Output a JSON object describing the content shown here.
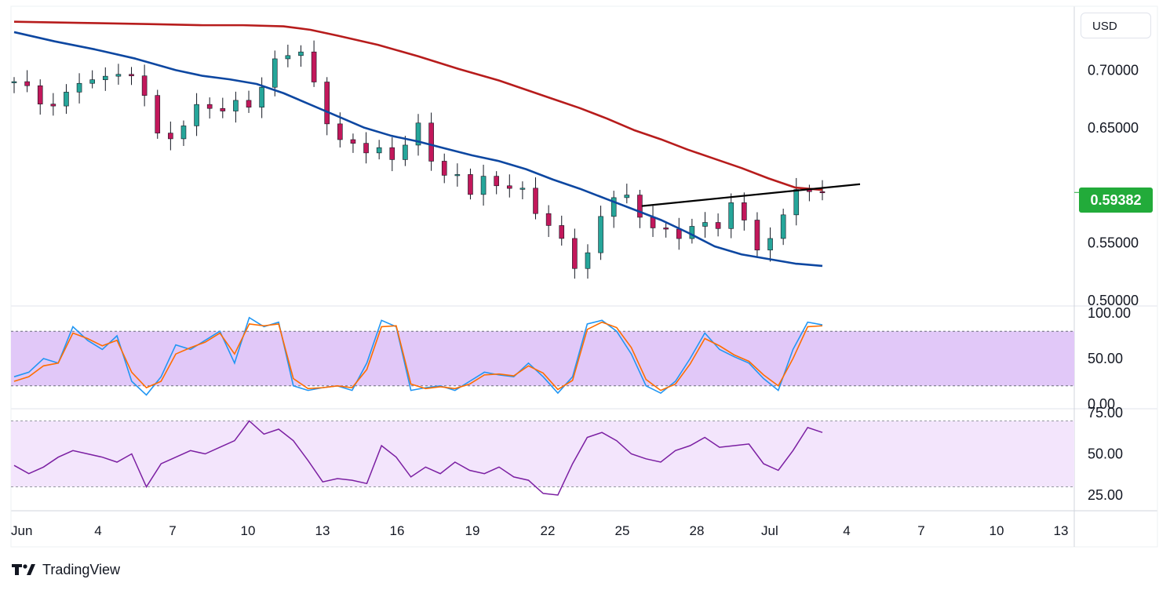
{
  "currency": "USD",
  "last_price": "0.59382",
  "branding": {
    "name": "TradingView",
    "logo_icon": "tradingview-logo-icon"
  },
  "colors": {
    "up": "#26a69a",
    "down": "#c2185b",
    "ema_slow": "#b71c1c",
    "ema_fast": "#0d47a1",
    "stoch_k": "#2196f3",
    "stoch_d": "#ff6d00",
    "rsi": "#7b1fa2",
    "stoch_band": "#e1c8f8",
    "rsi_band": "#f3e5fc",
    "price_tag": "#22ab3a"
  },
  "chart_data": [
    {
      "type": "candlestick",
      "panel": "price",
      "x_ticks": [
        "Jun",
        "4",
        "7",
        "10",
        "13",
        "16",
        "19",
        "22",
        "25",
        "28",
        "Jul",
        "4",
        "7",
        "10",
        "13"
      ],
      "y_ticks": [
        "0.70000",
        "0.65000",
        "0.55000",
        "0.50000"
      ],
      "ylim": [
        0.5,
        0.735
      ],
      "last_value": 0.59382,
      "close_path": [
        [
          0,
          0.69
        ],
        [
          2,
          0.675
        ],
        [
          3,
          0.665
        ],
        [
          4,
          0.682
        ],
        [
          5,
          0.695
        ],
        [
          6,
          0.685
        ],
        [
          7,
          0.7
        ],
        [
          8,
          0.698
        ],
        [
          9,
          0.687
        ],
        [
          10,
          0.68
        ],
        [
          11,
          0.625
        ],
        [
          12,
          0.645
        ],
        [
          13,
          0.665
        ],
        [
          14,
          0.668
        ],
        [
          15,
          0.665
        ],
        [
          16,
          0.672
        ],
        [
          17,
          0.665
        ],
        [
          18,
          0.678
        ],
        [
          19,
          0.7
        ],
        [
          20,
          0.715
        ],
        [
          21,
          0.722
        ],
        [
          22,
          0.695
        ],
        [
          23,
          0.665
        ],
        [
          24,
          0.635
        ],
        [
          25,
          0.638
        ],
        [
          26,
          0.632
        ],
        [
          27,
          0.628
        ],
        [
          28,
          0.625
        ],
        [
          29,
          0.635
        ],
        [
          30,
          0.65
        ],
        [
          31,
          0.625
        ],
        [
          32,
          0.605
        ],
        [
          33,
          0.608
        ],
        [
          34,
          0.595
        ],
        [
          35,
          0.605
        ],
        [
          36,
          0.6
        ],
        [
          37,
          0.6
        ],
        [
          38,
          0.59
        ],
        [
          39,
          0.575
        ],
        [
          40,
          0.56
        ],
        [
          41,
          0.545
        ],
        [
          42,
          0.525
        ],
        [
          43,
          0.548
        ],
        [
          44,
          0.592
        ],
        [
          45,
          0.595
        ],
        [
          46,
          0.578
        ],
        [
          47,
          0.57
        ],
        [
          48,
          0.558
        ],
        [
          49,
          0.556
        ],
        [
          50,
          0.562
        ],
        [
          51,
          0.566
        ],
        [
          52,
          0.562
        ],
        [
          53,
          0.583
        ],
        [
          54,
          0.575
        ],
        [
          55,
          0.548
        ],
        [
          56,
          0.545
        ],
        [
          57,
          0.575
        ],
        [
          58,
          0.598
        ],
        [
          59,
          0.59
        ],
        [
          60,
          0.594
        ]
      ],
      "trendline": {
        "x": [
          49.5,
          66.3
        ],
        "y": [
          0.582,
          0.601
        ]
      },
      "series": [
        {
          "name": "",
          "color": "#b71c1c",
          "points": [
            [
              0,
              0.742
            ],
            [
              5,
              0.741
            ],
            [
              10,
              0.74
            ],
            [
              14,
              0.739
            ],
            [
              17,
              0.739
            ],
            [
              20,
              0.738
            ],
            [
              22,
              0.735
            ],
            [
              24,
              0.73
            ],
            [
              27,
              0.722
            ],
            [
              30,
              0.712
            ],
            [
              33,
              0.701
            ],
            [
              36,
              0.691
            ],
            [
              38,
              0.683
            ],
            [
              40,
              0.675
            ],
            [
              42,
              0.667
            ],
            [
              44,
              0.658
            ],
            [
              46,
              0.648
            ],
            [
              48,
              0.64
            ],
            [
              50,
              0.631
            ],
            [
              52,
              0.623
            ],
            [
              54,
              0.615
            ],
            [
              56,
              0.606
            ],
            [
              58,
              0.598
            ],
            [
              60,
              0.596
            ]
          ]
        },
        {
          "name": "",
          "color": "#0d47a1",
          "points": [
            [
              0,
              0.733
            ],
            [
              3,
              0.725
            ],
            [
              6,
              0.718
            ],
            [
              9,
              0.71
            ],
            [
              12,
              0.7
            ],
            [
              14,
              0.695
            ],
            [
              16,
              0.692
            ],
            [
              18,
              0.688
            ],
            [
              20,
              0.68
            ],
            [
              22,
              0.67
            ],
            [
              24,
              0.66
            ],
            [
              26,
              0.65
            ],
            [
              28,
              0.643
            ],
            [
              30,
              0.638
            ],
            [
              32,
              0.632
            ],
            [
              34,
              0.626
            ],
            [
              36,
              0.621
            ],
            [
              38,
              0.614
            ],
            [
              40,
              0.605
            ],
            [
              42,
              0.597
            ],
            [
              44,
              0.588
            ],
            [
              46,
              0.579
            ],
            [
              48,
              0.57
            ],
            [
              50,
              0.559
            ],
            [
              52,
              0.547
            ],
            [
              54,
              0.54
            ],
            [
              56,
              0.536
            ],
            [
              58,
              0.532
            ],
            [
              60,
              0.53
            ]
          ]
        }
      ]
    },
    {
      "type": "line",
      "panel": "stochastic",
      "y_ticks": [
        "100.00",
        "50.00",
        "0.00"
      ],
      "ylim": [
        0,
        100
      ],
      "bands": [
        20,
        80
      ],
      "series": [
        {
          "name": "",
          "color": "#2196f3",
          "points": [
            [
              0,
              30
            ],
            [
              1,
              35
            ],
            [
              2,
              50
            ],
            [
              3,
              45
            ],
            [
              4,
              85
            ],
            [
              5,
              70
            ],
            [
              6,
              60
            ],
            [
              7,
              75
            ],
            [
              8,
              25
            ],
            [
              9,
              10
            ],
            [
              10,
              30
            ],
            [
              11,
              65
            ],
            [
              12,
              60
            ],
            [
              13,
              70
            ],
            [
              14,
              80
            ],
            [
              15,
              45
            ],
            [
              16,
              95
            ],
            [
              17,
              85
            ],
            [
              18,
              90
            ],
            [
              19,
              20
            ],
            [
              20,
              15
            ],
            [
              21,
              18
            ],
            [
              22,
              20
            ],
            [
              23,
              15
            ],
            [
              24,
              45
            ],
            [
              25,
              92
            ],
            [
              26,
              85
            ],
            [
              27,
              15
            ],
            [
              28,
              18
            ],
            [
              29,
              20
            ],
            [
              30,
              15
            ],
            [
              31,
              25
            ],
            [
              32,
              35
            ],
            [
              33,
              32
            ],
            [
              34,
              30
            ],
            [
              35,
              45
            ],
            [
              36,
              30
            ],
            [
              37,
              12
            ],
            [
              38,
              30
            ],
            [
              39,
              88
            ],
            [
              40,
              92
            ],
            [
              41,
              80
            ],
            [
              42,
              55
            ],
            [
              43,
              20
            ],
            [
              44,
              12
            ],
            [
              45,
              25
            ],
            [
              46,
              50
            ],
            [
              47,
              78
            ],
            [
              48,
              60
            ],
            [
              49,
              52
            ],
            [
              50,
              45
            ],
            [
              51,
              28
            ],
            [
              52,
              15
            ],
            [
              53,
              60
            ],
            [
              54,
              90
            ],
            [
              55,
              87
            ]
          ]
        },
        {
          "name": "",
          "color": "#ff6d00",
          "points": [
            [
              0,
              25
            ],
            [
              1,
              30
            ],
            [
              2,
              42
            ],
            [
              3,
              45
            ],
            [
              4,
              78
            ],
            [
              5,
              72
            ],
            [
              6,
              64
            ],
            [
              7,
              70
            ],
            [
              8,
              35
            ],
            [
              9,
              18
            ],
            [
              10,
              25
            ],
            [
              11,
              55
            ],
            [
              12,
              62
            ],
            [
              13,
              68
            ],
            [
              14,
              78
            ],
            [
              15,
              55
            ],
            [
              16,
              88
            ],
            [
              17,
              86
            ],
            [
              18,
              88
            ],
            [
              19,
              28
            ],
            [
              20,
              17
            ],
            [
              21,
              18
            ],
            [
              22,
              20
            ],
            [
              23,
              18
            ],
            [
              24,
              38
            ],
            [
              25,
              85
            ],
            [
              26,
              86
            ],
            [
              27,
              22
            ],
            [
              28,
              17
            ],
            [
              29,
              19
            ],
            [
              30,
              17
            ],
            [
              31,
              22
            ],
            [
              32,
              32
            ],
            [
              33,
              33
            ],
            [
              34,
              31
            ],
            [
              35,
              42
            ],
            [
              36,
              34
            ],
            [
              37,
              16
            ],
            [
              38,
              26
            ],
            [
              39,
              82
            ],
            [
              40,
              90
            ],
            [
              41,
              84
            ],
            [
              42,
              62
            ],
            [
              43,
              27
            ],
            [
              44,
              15
            ],
            [
              45,
              22
            ],
            [
              46,
              44
            ],
            [
              47,
              72
            ],
            [
              48,
              64
            ],
            [
              49,
              54
            ],
            [
              50,
              47
            ],
            [
              51,
              32
            ],
            [
              52,
              20
            ],
            [
              53,
              50
            ],
            [
              54,
              85
            ],
            [
              55,
              86
            ]
          ]
        }
      ]
    },
    {
      "type": "line",
      "panel": "rsi",
      "y_ticks": [
        "75.00",
        "50.00",
        "25.00"
      ],
      "ylim": [
        20,
        76
      ],
      "bands": [
        30,
        70
      ],
      "series": [
        {
          "name": "",
          "color": "#7b1fa2",
          "points": [
            [
              0,
              43
            ],
            [
              1,
              38
            ],
            [
              2,
              42
            ],
            [
              3,
              48
            ],
            [
              4,
              52
            ],
            [
              5,
              50
            ],
            [
              6,
              48
            ],
            [
              7,
              45
            ],
            [
              8,
              50
            ],
            [
              9,
              30
            ],
            [
              10,
              44
            ],
            [
              11,
              48
            ],
            [
              12,
              52
            ],
            [
              13,
              50
            ],
            [
              14,
              54
            ],
            [
              15,
              58
            ],
            [
              16,
              70
            ],
            [
              17,
              62
            ],
            [
              18,
              65
            ],
            [
              19,
              58
            ],
            [
              20,
              46
            ],
            [
              21,
              33
            ],
            [
              22,
              35
            ],
            [
              23,
              34
            ],
            [
              24,
              32
            ],
            [
              25,
              55
            ],
            [
              26,
              48
            ],
            [
              27,
              36
            ],
            [
              28,
              42
            ],
            [
              29,
              38
            ],
            [
              30,
              45
            ],
            [
              31,
              40
            ],
            [
              32,
              38
            ],
            [
              33,
              42
            ],
            [
              34,
              36
            ],
            [
              35,
              34
            ],
            [
              36,
              26
            ],
            [
              37,
              25
            ],
            [
              38,
              44
            ],
            [
              39,
              60
            ],
            [
              40,
              63
            ],
            [
              41,
              58
            ],
            [
              42,
              50
            ],
            [
              43,
              47
            ],
            [
              44,
              45
            ],
            [
              45,
              52
            ],
            [
              46,
              55
            ],
            [
              47,
              60
            ],
            [
              48,
              54
            ],
            [
              49,
              55
            ],
            [
              50,
              56
            ],
            [
              51,
              44
            ],
            [
              52,
              40
            ],
            [
              53,
              52
            ],
            [
              54,
              66
            ],
            [
              55,
              63
            ]
          ]
        }
      ]
    }
  ]
}
